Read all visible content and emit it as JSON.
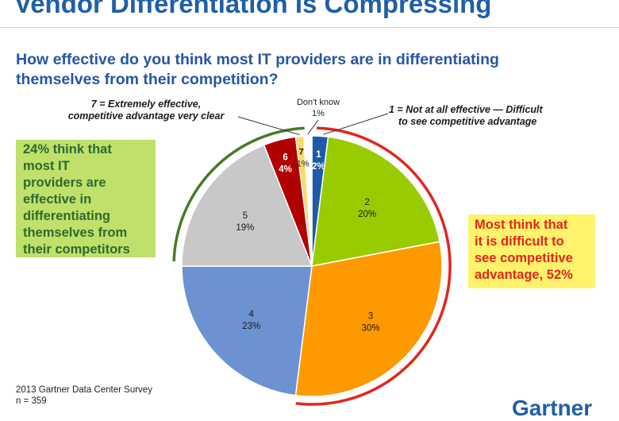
{
  "header": {
    "title": "Vendor Differentiation Is Compressing",
    "question_line1": "How effective do you think most IT providers are in differentiating",
    "question_line2": "themselves from their competition?"
  },
  "callouts": {
    "top_left_line1": "7 = Extremely effective,",
    "top_left_line2": "competitive advantage very clear",
    "dont_know_line1": "Don't know",
    "dont_know_line2": "1%",
    "top_right_line1": "1 = Not at all effective — Difficult",
    "top_right_line2": "to see competitive advantage",
    "green_box": [
      "24% think that",
      "most IT",
      "providers are",
      "effective in",
      "differentiating",
      "themselves from",
      "their competitors"
    ],
    "yellow_box": [
      "Most think that",
      "it is difficult to",
      "see competitive",
      "advantage, 52%"
    ]
  },
  "footer": {
    "source": "2013 Gartner Data Center Survey",
    "sample": "n = 359",
    "logo": "Gartner"
  },
  "colors": {
    "slice_1": "#1f5aa6",
    "slice_2": "#99cc00",
    "slice_3": "#ff9900",
    "slice_4": "#6d92d2",
    "slice_5": "#c8c8c8",
    "slice_6": "#b00000",
    "slice_7": "#ffd966",
    "dont_know": "#ffffff",
    "green_arc": "#4a7a26",
    "red_arc": "#e3251e"
  },
  "chart_data": {
    "type": "pie",
    "slices": [
      {
        "label": "1",
        "value": 2,
        "value_label": "2%",
        "color": "#1f5aa6",
        "text_color": "#ffffff"
      },
      {
        "label": "2",
        "value": 20,
        "value_label": "20%",
        "color": "#99cc00",
        "text_color": "#1a1a1a"
      },
      {
        "label": "3",
        "value": 30,
        "value_label": "30%",
        "color": "#ff9900",
        "text_color": "#1a1a1a"
      },
      {
        "label": "4",
        "value": 23,
        "value_label": "23%",
        "color": "#6d92d2",
        "text_color": "#1a1a1a"
      },
      {
        "label": "5",
        "value": 19,
        "value_label": "19%",
        "color": "#c8c8c8",
        "text_color": "#1a1a1a"
      },
      {
        "label": "6",
        "value": 4,
        "value_label": "4%",
        "color": "#b00000",
        "text_color": "#ffffff"
      },
      {
        "label": "7",
        "value": 1,
        "value_label": "1%",
        "color": "#ffd966",
        "text_color": "#1a1a1a"
      },
      {
        "label": "Don't know",
        "value": 1,
        "value_label": "1%",
        "color": "#ffffff",
        "text_color": "#1a1a1a"
      }
    ],
    "start_angle": "12 o'clock",
    "direction": "clockwise"
  }
}
